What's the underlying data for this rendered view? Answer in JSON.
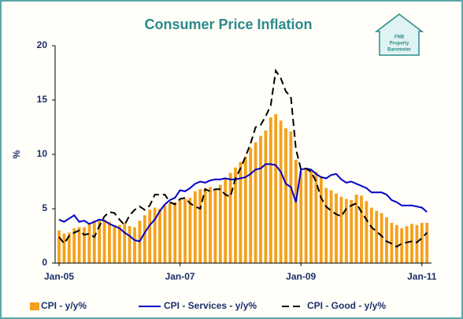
{
  "chart_data": {
    "type": "bar",
    "title": "Consumer Price Inflation",
    "logo": [
      "FNB",
      "Property",
      "Barometer"
    ],
    "ylabel": "%",
    "ylim": [
      0,
      20
    ],
    "yticks": [
      0,
      5,
      10,
      15,
      20
    ],
    "categories": [
      "Jan-05",
      null,
      null,
      null,
      null,
      null,
      null,
      null,
      null,
      null,
      null,
      null,
      null,
      null,
      null,
      null,
      null,
      null,
      null,
      null,
      null,
      null,
      null,
      null,
      "Jan-07",
      null,
      null,
      null,
      null,
      null,
      null,
      null,
      null,
      null,
      null,
      null,
      null,
      null,
      null,
      null,
      null,
      null,
      null,
      null,
      null,
      null,
      null,
      null,
      "Jan-09",
      null,
      null,
      null,
      null,
      null,
      null,
      null,
      null,
      null,
      null,
      null,
      null,
      null,
      null,
      null,
      null,
      null,
      null,
      null,
      null,
      null,
      null,
      null,
      "Jan-11",
      null
    ],
    "series": [
      {
        "name": "CPI - y/y%",
        "type": "bar",
        "color": "#f4a11d",
        "values": [
          3.0,
          2.7,
          2.8,
          3.2,
          3.3,
          3.3,
          3.6,
          3.9,
          4.0,
          4.0,
          3.8,
          3.5,
          3.5,
          3.7,
          3.4,
          3.3,
          3.9,
          4.4,
          4.9,
          5.1,
          5.0,
          5.3,
          5.5,
          5.6,
          5.8,
          5.9,
          6.0,
          6.6,
          6.8,
          6.9,
          7.0,
          6.7,
          7.2,
          7.8,
          8.3,
          8.8,
          9.3,
          9.8,
          10.6,
          11.1,
          11.7,
          12.2,
          13.4,
          13.7,
          13.1,
          12.4,
          12.1,
          9.5,
          8.4,
          8.6,
          8.5,
          8.4,
          8.0,
          6.9,
          6.7,
          6.4,
          6.1,
          5.9,
          5.8,
          6.3,
          6.2,
          5.7,
          5.1,
          4.8,
          4.6,
          4.2,
          3.7,
          3.5,
          3.2,
          3.4,
          3.6,
          3.5,
          3.7,
          3.7
        ]
      },
      {
        "name": "CPI - Services - y/y%",
        "type": "line",
        "color": "#0000cc",
        "dashed": false,
        "values": [
          4.0,
          3.8,
          4.1,
          4.4,
          3.8,
          3.9,
          3.6,
          3.8,
          4.0,
          3.9,
          3.6,
          3.4,
          3.2,
          2.8,
          2.5,
          2.1,
          2.0,
          2.8,
          3.5,
          4.0,
          4.8,
          5.4,
          5.8,
          6.0,
          6.7,
          6.6,
          6.9,
          7.3,
          7.5,
          7.4,
          7.6,
          7.7,
          7.7,
          7.8,
          7.7,
          7.7,
          7.8,
          7.9,
          8.2,
          8.6,
          8.7,
          9.1,
          9.1,
          9.0,
          8.4,
          7.3,
          7.0,
          5.6,
          8.6,
          8.7,
          8.6,
          8.2,
          7.9,
          7.8,
          8.1,
          8.2,
          7.7,
          7.4,
          7.5,
          7.3,
          7.1,
          6.9,
          6.5,
          6.5,
          6.5,
          6.3,
          5.8,
          5.6,
          5.3,
          5.3,
          5.3,
          5.2,
          5.1,
          4.7
        ]
      },
      {
        "name": "CPI - Good - y/y%",
        "type": "line",
        "color": "#000000",
        "dashed": true,
        "values": [
          2.4,
          1.8,
          2.5,
          2.8,
          3.0,
          2.6,
          2.7,
          2.4,
          3.4,
          4.3,
          4.7,
          4.6,
          4.0,
          3.5,
          4.4,
          4.9,
          5.2,
          4.9,
          5.3,
          6.3,
          6.3,
          6.3,
          5.6,
          5.4,
          5.9,
          6.0,
          5.5,
          5.2,
          5.0,
          6.8,
          6.6,
          6.8,
          6.8,
          6.3,
          6.1,
          7.8,
          8.7,
          9.8,
          11.0,
          12.5,
          12.7,
          13.5,
          14.5,
          17.7,
          17.0,
          15.8,
          15.3,
          10.5,
          8.6,
          8.7,
          8.4,
          7.5,
          6.0,
          5.2,
          4.8,
          4.5,
          4.3,
          5.0,
          5.3,
          5.5,
          4.7,
          4.0,
          3.3,
          2.9,
          2.5,
          2.0,
          1.8,
          1.5,
          1.8,
          1.9,
          2.0,
          1.9,
          2.3,
          2.8
        ]
      }
    ]
  }
}
